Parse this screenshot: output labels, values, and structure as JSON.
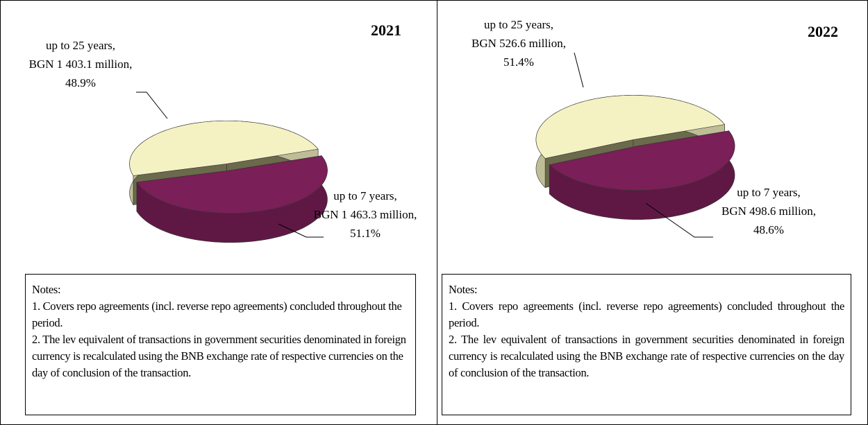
{
  "chart_data": [
    {
      "type": "pie",
      "title": "2021",
      "categories": [
        "up to 25 years,",
        "up to 7 years,"
      ],
      "amount_labels": [
        "BGN 1 403.1 million,",
        "BGN  1 463.3 million,"
      ],
      "values": [
        48.9,
        51.1
      ],
      "value_labels": [
        "48.9%",
        "51.1%"
      ],
      "colors": [
        "#f4f2c2",
        "#7a1f57"
      ]
    },
    {
      "type": "pie",
      "title": "2022",
      "categories": [
        "up to 25 years,",
        "up to 7 years,"
      ],
      "amount_labels": [
        "BGN  526.6 million,",
        "BGN  498.6 million,"
      ],
      "values": [
        51.4,
        48.6
      ],
      "value_labels": [
        "51.4%",
        "48.6%"
      ],
      "colors": [
        "#f4f2c2",
        "#7a1f57"
      ]
    }
  ],
  "notes": [
    {
      "title": "Notes:",
      "items": [
        "1. Covers repo agreements (incl. reverse repo agreements) concluded throughout the period.",
        "2. The lev equivalent  of transactions in government securities denominated in foreign currency is recalculated using the BNB exchange rate of respective currencies on the day of conclusion of the transaction."
      ]
    },
    {
      "title": "Notes:",
      "items": [
        "1.  Covers  repo  agreements  (incl.  reverse  repo  agreements)  concluded throughout the period.",
        "2. The lev equivalent of transactions in government securities denominated in foreign currency is recalculated using the BNB exchange rate of respective currencies on the day of conclusion of the transaction."
      ]
    }
  ]
}
